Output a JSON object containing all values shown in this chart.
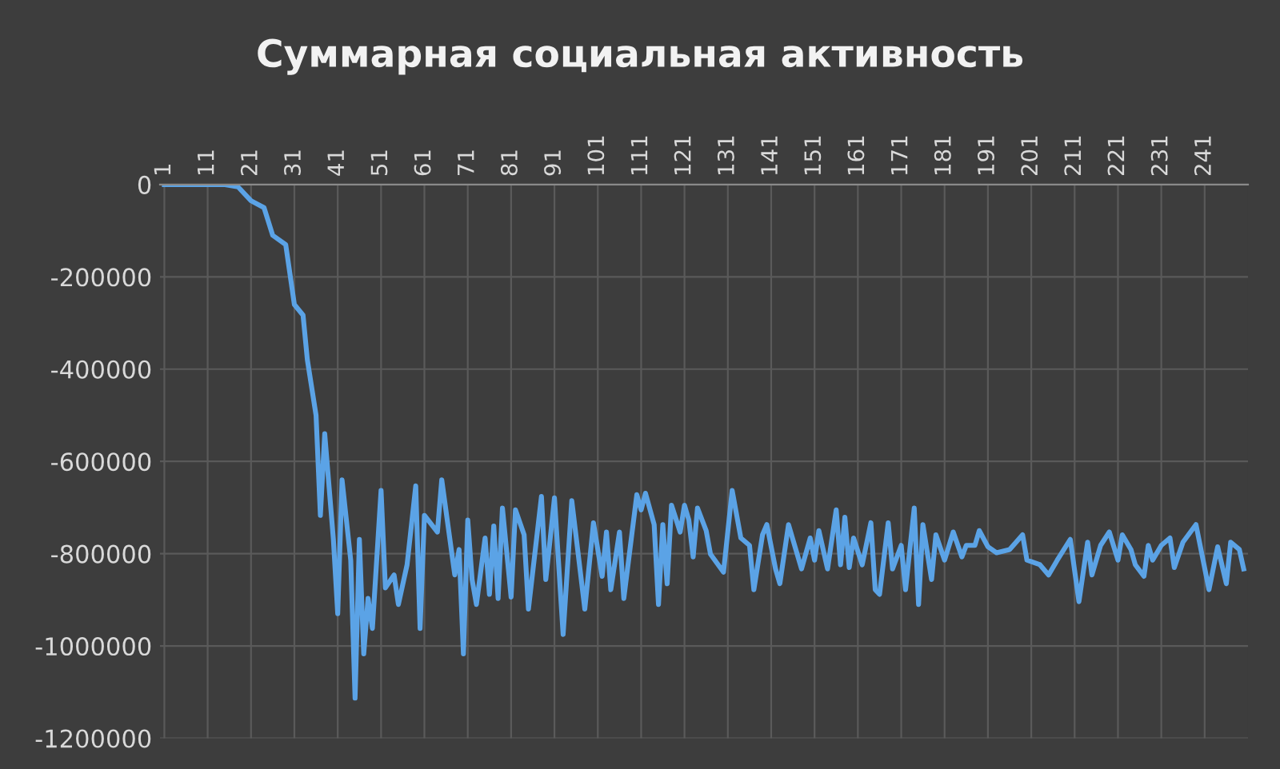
{
  "chart_data": {
    "type": "line",
    "title": "Суммарная социальная активность",
    "x": [
      1,
      5,
      10,
      15,
      18,
      21,
      24,
      26,
      29,
      31,
      33,
      34,
      36,
      37,
      38,
      40,
      41,
      42,
      44,
      45,
      46,
      47,
      48,
      49,
      51,
      52,
      54,
      55,
      57,
      59,
      60,
      61,
      64,
      65,
      68,
      69,
      70,
      71,
      72,
      73,
      75,
      76,
      77,
      78,
      79,
      81,
      82,
      84,
      85,
      88,
      89,
      90,
      91,
      93,
      95,
      98,
      100,
      102,
      103,
      104,
      106,
      107,
      110,
      111,
      112,
      114,
      115,
      116,
      117,
      118,
      120,
      121,
      122,
      123,
      124,
      126,
      127,
      130,
      132,
      134,
      136,
      137,
      139,
      140,
      142,
      143,
      145,
      148,
      150,
      151,
      152,
      154,
      156,
      157,
      158,
      159,
      160,
      162,
      164,
      165,
      166,
      168,
      169,
      171,
      172,
      174,
      175,
      176,
      178,
      179,
      181,
      183,
      185,
      186,
      188,
      189,
      191,
      193,
      196,
      199,
      200,
      203,
      205,
      207,
      210,
      212,
      214,
      215,
      217,
      219,
      221,
      222,
      224,
      225,
      227,
      228,
      229,
      231,
      233,
      234,
      236,
      239,
      242,
      244,
      246,
      247,
      249,
      250
    ],
    "series": [
      {
        "color": "#5ba3e6",
        "values": [
          0,
          0,
          0,
          0,
          -5000,
          -35000,
          -50000,
          -110000,
          -130000,
          -260000,
          -283000,
          -380000,
          -500000,
          -717000,
          -540000,
          -769000,
          -930000,
          -640000,
          -814000,
          -1113000,
          -769000,
          -1017000,
          -897000,
          -962000,
          -663000,
          -874000,
          -846000,
          -910000,
          -824000,
          -653000,
          -962000,
          -717000,
          -753000,
          -640000,
          -846000,
          -791000,
          -1017000,
          -727000,
          -856000,
          -910000,
          -766000,
          -888000,
          -740000,
          -897000,
          -701000,
          -894000,
          -705000,
          -759000,
          -920000,
          -676000,
          -856000,
          -769000,
          -679000,
          -975000,
          -685000,
          -920000,
          -733000,
          -849000,
          -753000,
          -878000,
          -753000,
          -897000,
          -672000,
          -705000,
          -669000,
          -737000,
          -910000,
          -737000,
          -865000,
          -695000,
          -753000,
          -695000,
          -727000,
          -807000,
          -701000,
          -750000,
          -801000,
          -840000,
          -663000,
          -766000,
          -782000,
          -878000,
          -759000,
          -737000,
          -833000,
          -865000,
          -737000,
          -833000,
          -766000,
          -814000,
          -750000,
          -833000,
          -705000,
          -824000,
          -721000,
          -830000,
          -766000,
          -824000,
          -733000,
          -878000,
          -888000,
          -733000,
          -833000,
          -782000,
          -878000,
          -701000,
          -910000,
          -737000,
          -856000,
          -759000,
          -814000,
          -753000,
          -807000,
          -782000,
          -782000,
          -750000,
          -785000,
          -798000,
          -791000,
          -759000,
          -814000,
          -824000,
          -846000,
          -814000,
          -769000,
          -904000,
          -775000,
          -846000,
          -782000,
          -753000,
          -814000,
          -759000,
          -791000,
          -824000,
          -849000,
          -782000,
          -814000,
          -782000,
          -766000,
          -830000,
          -775000,
          -737000,
          -878000,
          -785000,
          -865000,
          -775000,
          -791000,
          -833000
        ]
      }
    ],
    "xlim": [
      0,
      251
    ],
    "xticks": [
      1,
      11,
      21,
      31,
      41,
      51,
      61,
      71,
      81,
      91,
      101,
      111,
      121,
      131,
      141,
      151,
      161,
      171,
      181,
      191,
      201,
      211,
      221,
      231,
      241
    ],
    "ylim": [
      -1200000,
      0
    ],
    "yticks": [
      -1200000,
      -1000000,
      -800000,
      -600000,
      -400000,
      -200000,
      0
    ],
    "grid": true,
    "line_style": "solid",
    "marker": "none",
    "legend": false
  }
}
